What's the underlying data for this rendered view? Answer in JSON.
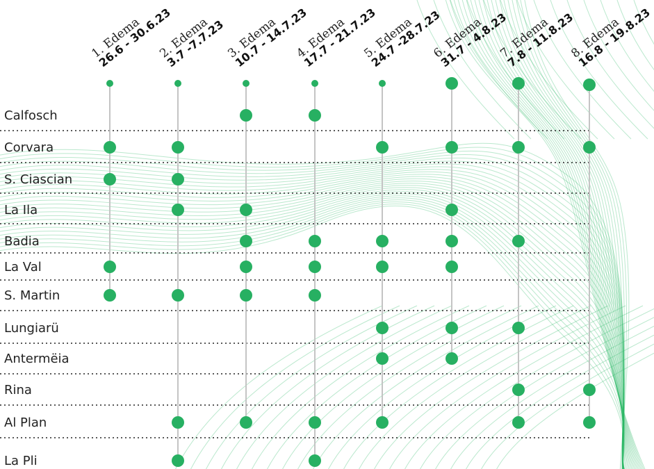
{
  "colors": {
    "dot": "#27b062",
    "line": "#c4c4c4",
    "separator": "#222222",
    "wave": "#2db866"
  },
  "columns": [
    {
      "week": "1. Edema",
      "dates": "26.6 - 30.6.23"
    },
    {
      "week": "2. Edema",
      "dates": "3.7 -7.7.23"
    },
    {
      "week": "3. Edema",
      "dates": "10.7 - 14.7.23"
    },
    {
      "week": "4. Edema",
      "dates": "17.7 - 21.7.23"
    },
    {
      "week": "5. Edema",
      "dates": "24.7 -28.7.23"
    },
    {
      "week": "6. Edema",
      "dates": "31.7 - 4.8.23"
    },
    {
      "week": "7. Edema",
      "dates": "7.8 - 11.8.23"
    },
    {
      "week": "8. Edema",
      "dates": "16.8 - 19.8.23"
    }
  ],
  "rows": [
    {
      "label": "Calfosch",
      "weeks": [
        3,
        4
      ]
    },
    {
      "label": "Corvara",
      "weeks": [
        1,
        2,
        5,
        6,
        7,
        8
      ]
    },
    {
      "label": "S. Ciascian",
      "weeks": [
        1,
        2
      ]
    },
    {
      "label": "La Ila",
      "weeks": [
        2,
        3,
        6
      ]
    },
    {
      "label": "Badia",
      "weeks": [
        3,
        4,
        5,
        6,
        7
      ]
    },
    {
      "label": "La Val",
      "weeks": [
        1,
        3,
        4,
        5,
        6
      ]
    },
    {
      "label": "S. Martin",
      "weeks": [
        1,
        2,
        3,
        4
      ]
    },
    {
      "label": "Lungiarü",
      "weeks": [
        5,
        6,
        7
      ]
    },
    {
      "label": "Antermëia",
      "weeks": [
        5,
        6
      ]
    },
    {
      "label": "Rina",
      "weeks": [
        7,
        8
      ]
    },
    {
      "label": "Al Plan",
      "weeks": [
        2,
        3,
        4,
        5,
        7,
        8
      ]
    },
    {
      "label": "La Pli",
      "weeks": [
        2,
        4
      ]
    }
  ]
}
